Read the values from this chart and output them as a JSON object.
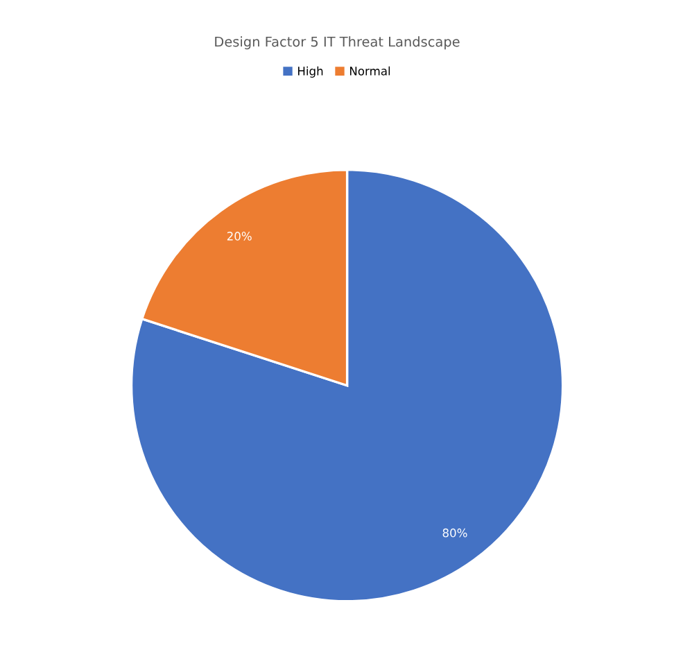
{
  "chart_data": {
    "type": "pie",
    "title": "Design Factor 5 IT Threat Landscape",
    "categories": [
      "High",
      "Normal"
    ],
    "values": [
      80,
      20
    ],
    "colors": [
      "#4472c4",
      "#ed7d31"
    ],
    "value_labels": [
      "80%",
      "20%"
    ],
    "legend": "top"
  }
}
